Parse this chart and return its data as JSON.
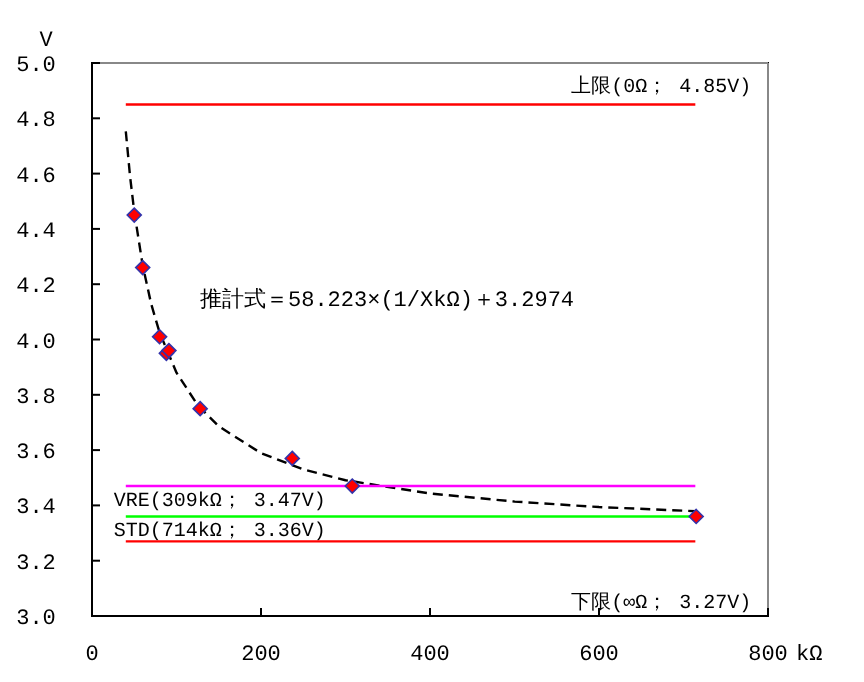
{
  "chart_data": {
    "type": "scatter",
    "ylabel": "V",
    "xlabel": "kΩ",
    "xlim": [
      0,
      800
    ],
    "ylim": [
      3.0,
      5.0
    ],
    "xticks": [
      0,
      200,
      400,
      600,
      800
    ],
    "yticks": [
      {
        "value": 3.0,
        "label": "3.0"
      },
      {
        "value": 3.2,
        "label": "3.2"
      },
      {
        "value": 3.4,
        "label": "3.4"
      },
      {
        "value": 3.6,
        "label": "3.6"
      },
      {
        "value": 3.8,
        "label": "3.8"
      },
      {
        "value": 4.0,
        "label": "4.0"
      },
      {
        "value": 4.2,
        "label": "4.2"
      },
      {
        "value": 4.4,
        "label": "4.4"
      },
      {
        "value": 4.6,
        "label": "4.6"
      },
      {
        "value": 4.8,
        "label": "4.8"
      },
      {
        "value": 5.0,
        "label": "5.0"
      }
    ],
    "grid": false,
    "marker": "diamond",
    "annotations": [
      "推計式＝58.223×(1/XkΩ)＋3.2974"
    ],
    "series": [
      {
        "color": "#ff0000",
        "x": [
          50,
          60,
          80,
          88,
          91,
          128,
          237,
          308,
          715
        ],
        "values": [
          4.45,
          4.26,
          4.01,
          3.95,
          3.96,
          3.75,
          3.57,
          3.47,
          3.36
        ]
      },
      {
        "type": "line",
        "marker": "none",
        "line_style": "dashed",
        "color": "#000000",
        "x": [
          40,
          45,
          50,
          60,
          70,
          80,
          100,
          125,
          150,
          200,
          250,
          300,
          400,
          500,
          600,
          715
        ],
        "values": [
          4.753,
          4.591,
          4.462,
          4.268,
          4.129,
          4.025,
          3.88,
          3.763,
          3.686,
          3.589,
          3.53,
          3.491,
          3.443,
          3.414,
          3.394,
          3.379
        ]
      },
      {
        "type": "line",
        "marker": "none",
        "line_style": "solid",
        "name": "上限(0Ω； 4.85V)",
        "color": "#ff0000",
        "x": [
          40,
          714
        ],
        "values": [
          4.85,
          4.85
        ]
      },
      {
        "type": "line",
        "marker": "none",
        "line_style": "solid",
        "name": "VRE(309kΩ； 3.47V)",
        "color": "#ff00ff",
        "x": [
          40,
          714
        ],
        "values": [
          3.47,
          3.47
        ]
      },
      {
        "type": "line",
        "marker": "none",
        "line_style": "solid",
        "name": "STD(714kΩ； 3.36V)",
        "color": "#00ff00",
        "x": [
          40,
          714
        ],
        "values": [
          3.36,
          3.36
        ]
      },
      {
        "type": "line",
        "marker": "none",
        "line_style": "solid",
        "name": "下限(∞Ω； 3.27V)",
        "color": "#ff0000",
        "x": [
          40,
          714
        ],
        "values": [
          3.27,
          3.27
        ]
      }
    ]
  }
}
